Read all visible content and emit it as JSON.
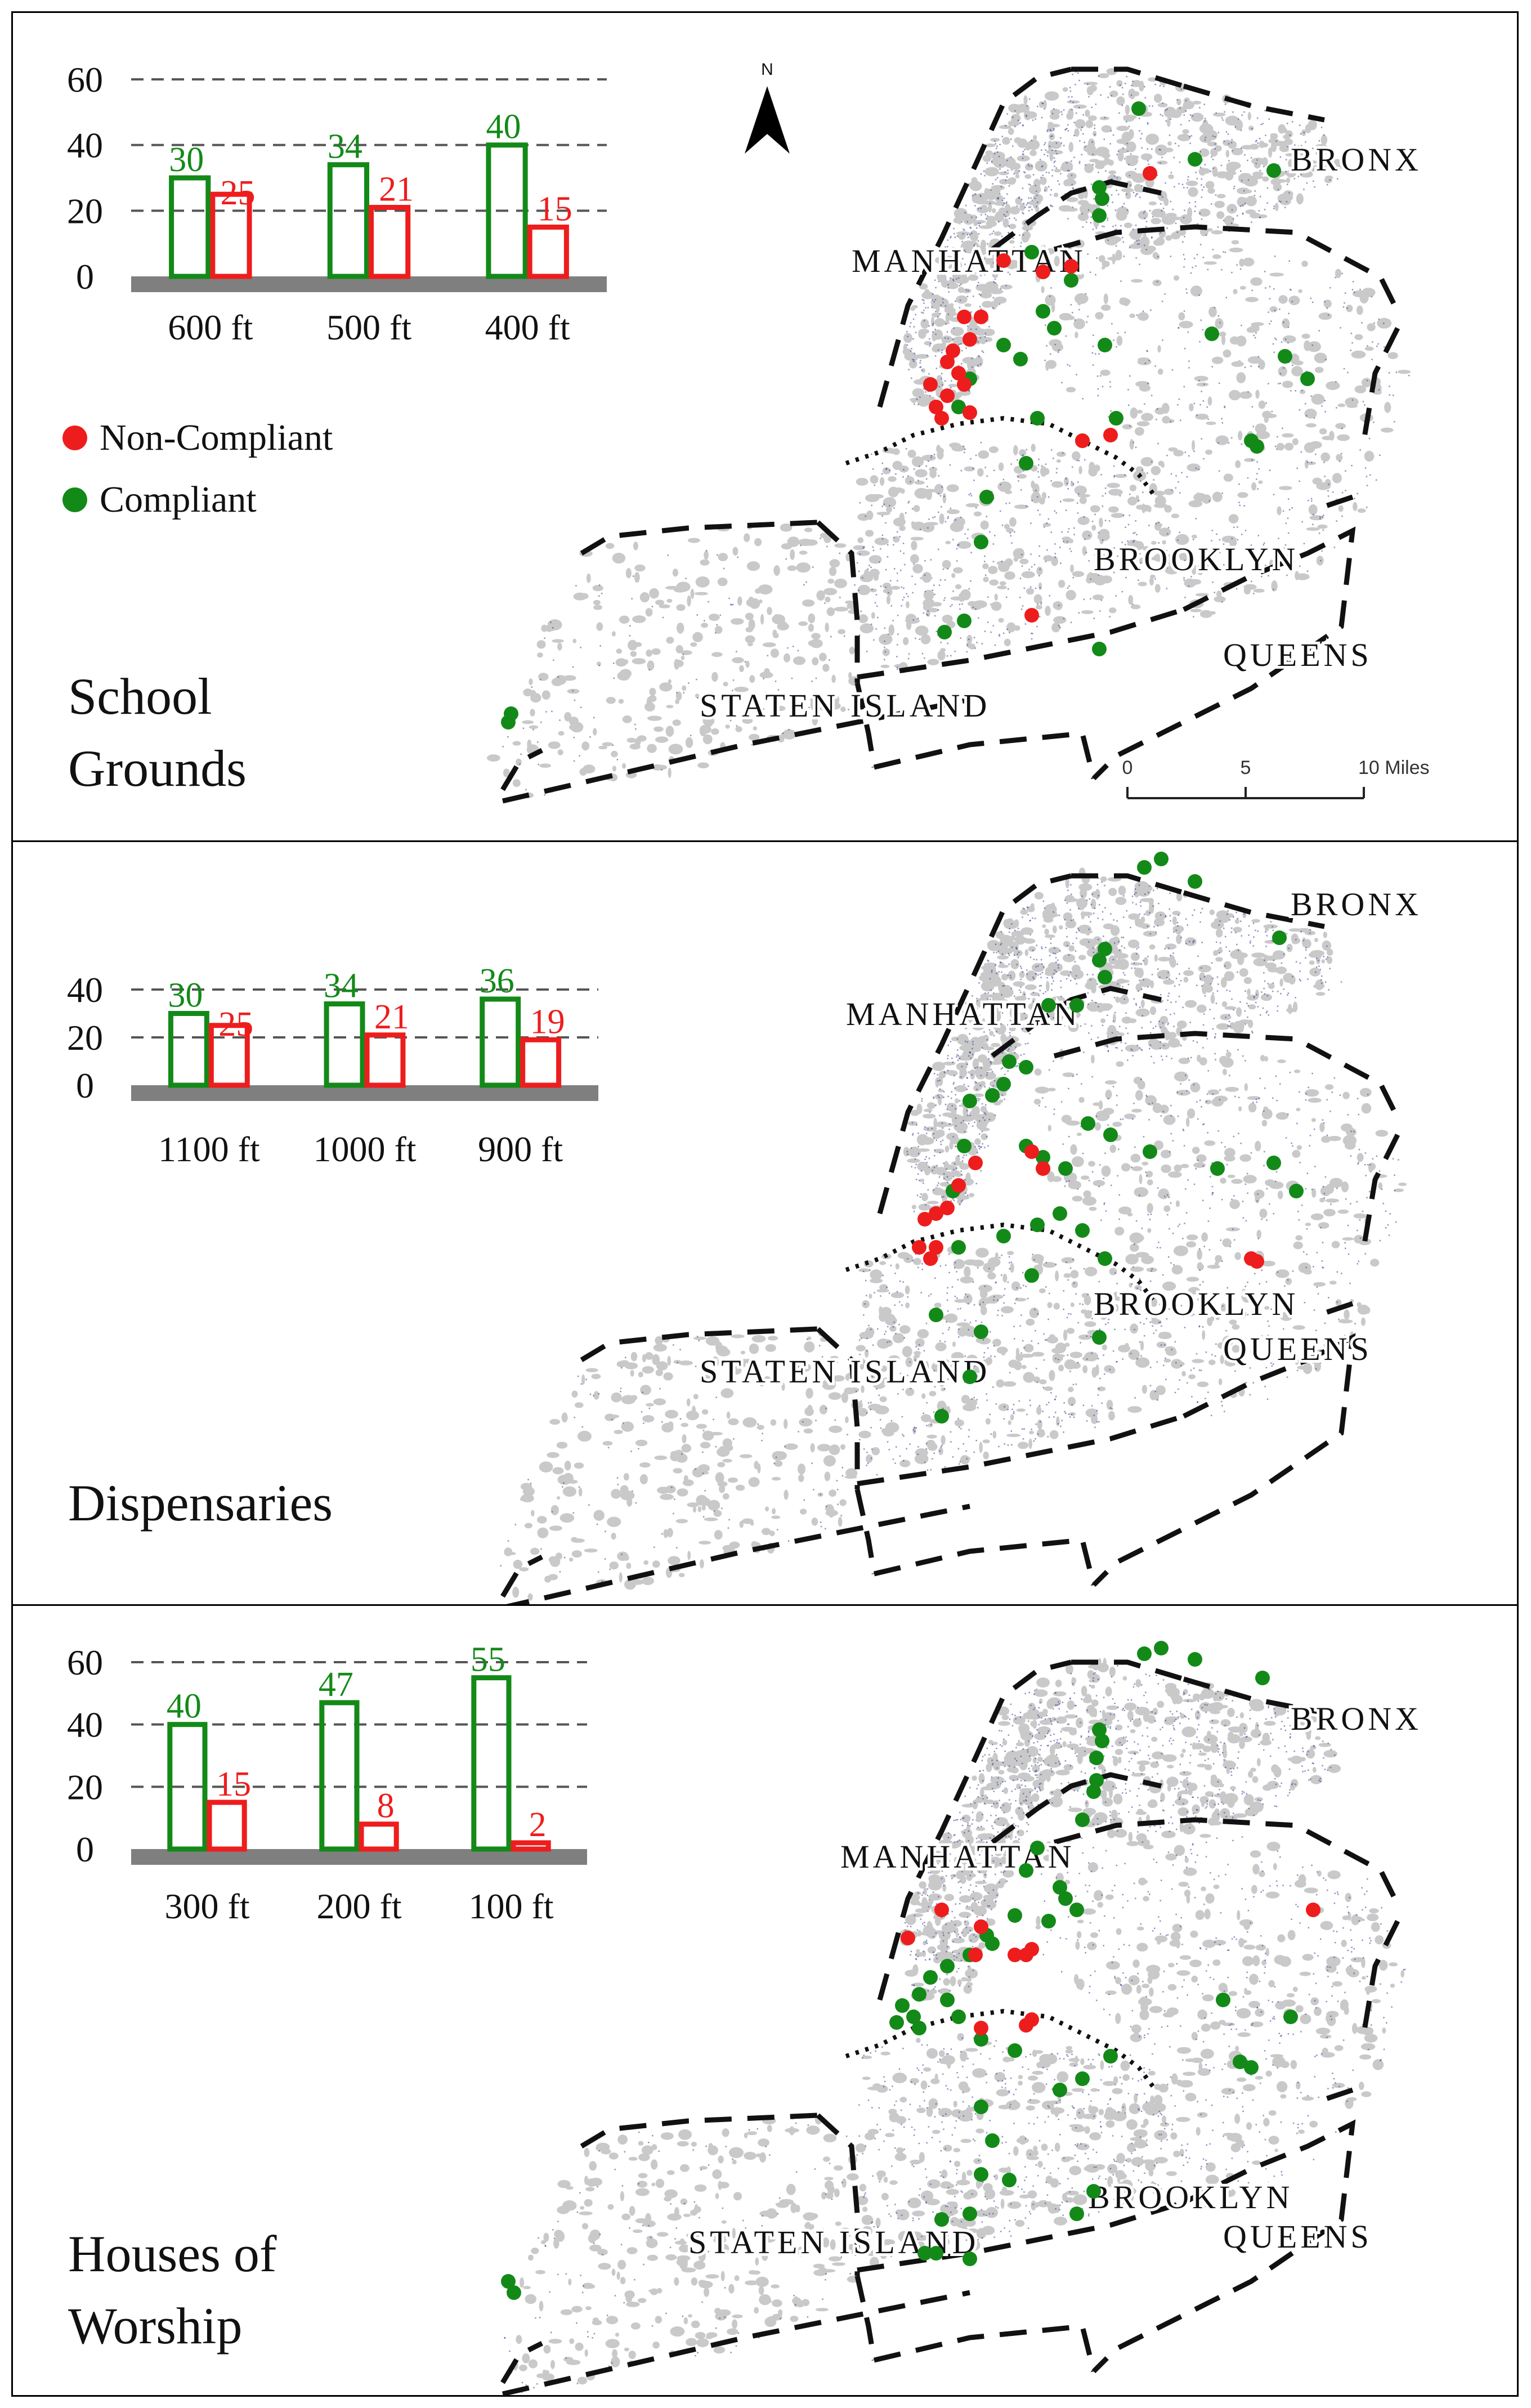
{
  "colors": {
    "compliant": "#138a18",
    "non_compliant": "#ee1d1d",
    "baseline": "#7f7f7f",
    "parcels": "#c9c9c9",
    "points": "#2f3a8f"
  },
  "legend": {
    "non_compliant": "Non-Compliant",
    "compliant": "Compliant"
  },
  "map_labels": {
    "bronx": "BRONX",
    "manhattan": "MANHATTAN",
    "brooklyn": "BROOKLYN",
    "queens": "QUEENS",
    "staten_island": "STATEN ISLAND"
  },
  "scale_bar": {
    "ticks": [
      "0",
      "5",
      "10 Miles"
    ]
  },
  "north_arrow": {
    "label": "N",
    "icon": "north-arrow-icon"
  },
  "panels": [
    {
      "title_line1": "School",
      "title_line2": "Grounds"
    },
    {
      "title_line1": "Dispensaries",
      "title_line2": ""
    },
    {
      "title_line1": "Houses of",
      "title_line2": "Worship"
    }
  ],
  "chart_data": [
    {
      "type": "bar",
      "categories": [
        "600 ft",
        "500 ft",
        "400 ft"
      ],
      "series": [
        {
          "name": "Compliant",
          "values": [
            30,
            34,
            40
          ]
        },
        {
          "name": "Non-Compliant",
          "values": [
            25,
            21,
            15
          ]
        }
      ],
      "yticks": [
        0,
        20,
        40,
        60
      ],
      "ylim": [
        0,
        60
      ],
      "grid": "dashed"
    },
    {
      "type": "bar",
      "categories": [
        "1100 ft",
        "1000 ft",
        "900 ft"
      ],
      "series": [
        {
          "name": "Compliant",
          "values": [
            30,
            34,
            36
          ]
        },
        {
          "name": "Non-Compliant",
          "values": [
            25,
            21,
            19
          ]
        }
      ],
      "yticks": [
        0,
        20,
        40
      ],
      "ylim": [
        0,
        40
      ],
      "grid": "dashed"
    },
    {
      "type": "bar",
      "categories": [
        "300 ft",
        "200 ft",
        "100 ft"
      ],
      "series": [
        {
          "name": "Compliant",
          "values": [
            40,
            47,
            55
          ]
        },
        {
          "name": "Non-Compliant",
          "values": [
            15,
            8,
            2
          ]
        }
      ],
      "yticks": [
        0,
        20,
        40,
        60
      ],
      "ylim": [
        0,
        60
      ],
      "grid": "dashed"
    }
  ]
}
